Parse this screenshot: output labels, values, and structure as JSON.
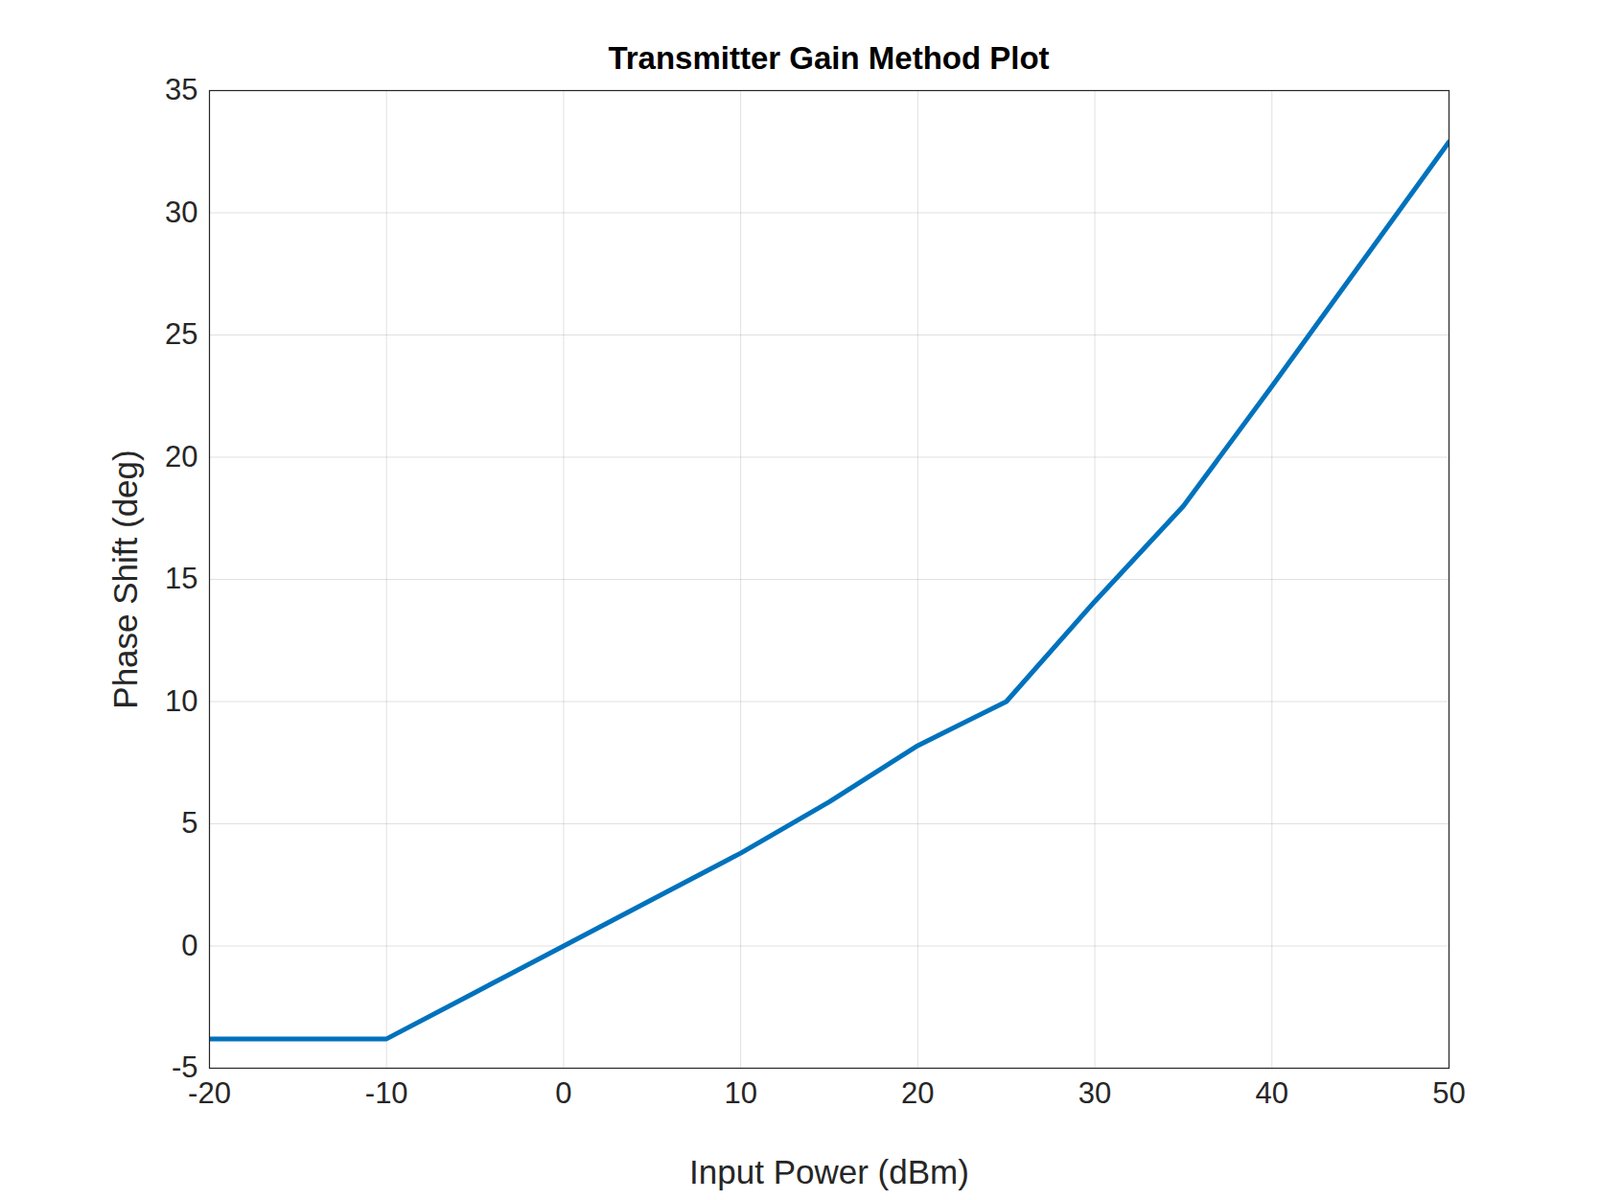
{
  "chart_data": {
    "type": "line",
    "title": "Transmitter Gain Method Plot",
    "x_label": "Input Power (dBm)",
    "y_label": "Phase Shift (deg)",
    "x": [
      -20,
      -15,
      -10,
      -5,
      0,
      5,
      10,
      15,
      20,
      25,
      30,
      35,
      40,
      45,
      50
    ],
    "series": [
      {
        "name": "Phase Shift",
        "color": "#0072bd",
        "values": [
          -3.8,
          -3.8,
          -3.8,
          -1.9,
          0,
          1.9,
          3.8,
          5.9,
          8.2,
          10,
          14.1,
          18,
          22.9,
          27.9,
          32.9
        ]
      }
    ],
    "xlim": [
      -20,
      50
    ],
    "xticks": [
      -20,
      -10,
      0,
      10,
      20,
      30,
      40,
      50
    ],
    "ylim": [
      -5,
      35
    ],
    "yticks": [
      -5,
      0,
      5,
      10,
      15,
      20,
      25,
      30,
      35
    ],
    "grid": true
  }
}
